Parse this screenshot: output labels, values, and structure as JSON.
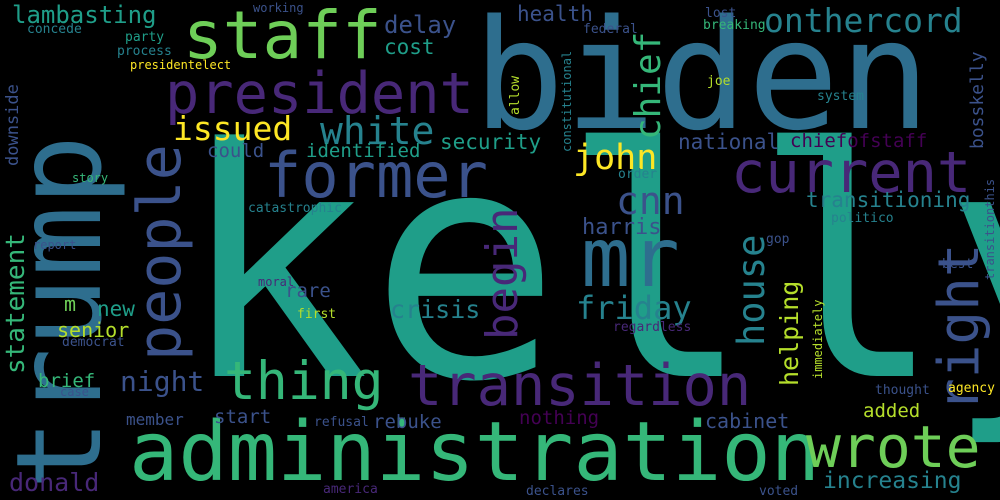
{
  "background": "#000000",
  "colors": {
    "blue": "#2e6e8e",
    "navy": "#3b528b",
    "purple": "#482878",
    "deep_purple": "#440154",
    "dark_teal": "#26828e",
    "teal": "#1f9e89",
    "green": "#35b779",
    "light_green": "#6ece58",
    "yellow": "#fde725",
    "lime": "#b5de2b"
  },
  "words": [
    {
      "text": "kelly",
      "color": "teal"
    },
    {
      "text": "biden",
      "color": "blue"
    },
    {
      "text": "trump",
      "color": "blue"
    },
    {
      "text": "administration",
      "color": "green"
    },
    {
      "text": "staff",
      "color": "light_green"
    },
    {
      "text": "president",
      "color": "purple"
    },
    {
      "text": "former",
      "color": "navy"
    },
    {
      "text": "mr",
      "color": "blue"
    },
    {
      "text": "transition",
      "color": "purple"
    },
    {
      "text": "current",
      "color": "purple"
    },
    {
      "text": "people",
      "color": "navy"
    },
    {
      "text": "right",
      "color": "navy"
    },
    {
      "text": "wrote",
      "color": "light_green"
    },
    {
      "text": "thing",
      "color": "green"
    },
    {
      "text": "onthercord",
      "color": "dark_teal"
    },
    {
      "text": "begin",
      "color": "purple"
    },
    {
      "text": "issued",
      "color": "yellow"
    },
    {
      "text": "white",
      "color": "dark_teal"
    },
    {
      "text": "john",
      "color": "yellow"
    },
    {
      "text": "chief",
      "color": "green"
    },
    {
      "text": "cnn",
      "color": "navy"
    },
    {
      "text": "house",
      "color": "dark_teal"
    },
    {
      "text": "friday",
      "color": "dark_teal"
    },
    {
      "text": "lambasting",
      "color": "teal"
    },
    {
      "text": "statement",
      "color": "green"
    },
    {
      "text": "night",
      "color": "navy"
    },
    {
      "text": "transitioning",
      "color": "dark_teal"
    },
    {
      "text": "chiefofstaff",
      "color": "deep_purple"
    },
    {
      "text": "national",
      "color": "navy"
    },
    {
      "text": "helping",
      "color": "lime"
    },
    {
      "text": "crisis",
      "color": "dark_teal"
    },
    {
      "text": "security",
      "color": "teal"
    },
    {
      "text": "harris",
      "color": "navy"
    },
    {
      "text": "delay",
      "color": "navy"
    },
    {
      "text": "donald",
      "color": "purple"
    },
    {
      "text": "increasing",
      "color": "dark_teal"
    },
    {
      "text": "new",
      "color": "teal"
    },
    {
      "text": "senior",
      "color": "lime"
    },
    {
      "text": "brief",
      "color": "green"
    },
    {
      "text": "cost",
      "color": "teal"
    },
    {
      "text": "health",
      "color": "navy"
    },
    {
      "text": "identified",
      "color": "teal"
    },
    {
      "text": "could",
      "color": "navy"
    },
    {
      "text": "rare",
      "color": "navy"
    },
    {
      "text": "start",
      "color": "navy"
    },
    {
      "text": "rebuke",
      "color": "navy"
    },
    {
      "text": "member",
      "color": "navy"
    },
    {
      "text": "nothing",
      "color": "deep_purple"
    },
    {
      "text": "added",
      "color": "lime"
    },
    {
      "text": "cabinet",
      "color": "navy"
    },
    {
      "text": "bosskelly",
      "color": "navy"
    },
    {
      "text": "downside",
      "color": "navy"
    },
    {
      "text": "m",
      "color": "light_green"
    },
    {
      "text": "concede",
      "color": "dark_teal"
    },
    {
      "text": "party",
      "color": "teal"
    },
    {
      "text": "process",
      "color": "dark_teal"
    },
    {
      "text": "presidentelect",
      "color": "yellow"
    },
    {
      "text": "working",
      "color": "navy"
    },
    {
      "text": "federal",
      "color": "navy"
    },
    {
      "text": "lost",
      "color": "navy"
    },
    {
      "text": "breaking",
      "color": "green"
    },
    {
      "text": "joe",
      "color": "lime"
    },
    {
      "text": "allow",
      "color": "lime"
    },
    {
      "text": "constitutional",
      "color": "dark_teal"
    },
    {
      "text": "system",
      "color": "dark_teal"
    },
    {
      "text": "story",
      "color": "green"
    },
    {
      "text": "order",
      "color": "dark_teal"
    },
    {
      "text": "catastrophic",
      "color": "dark_teal"
    },
    {
      "text": "politico",
      "color": "dark_teal"
    },
    {
      "text": "gop",
      "color": "navy"
    },
    {
      "text": "best",
      "color": "navy"
    },
    {
      "text": "transitionthis",
      "color": "navy"
    },
    {
      "text": "report",
      "color": "navy"
    },
    {
      "text": "moral",
      "color": "purple"
    },
    {
      "text": "first",
      "color": "lime"
    },
    {
      "text": "immediately",
      "color": "lime"
    },
    {
      "text": "regardless",
      "color": "purple"
    },
    {
      "text": "democrat",
      "color": "navy"
    },
    {
      "text": "case",
      "color": "navy"
    },
    {
      "text": "refusal",
      "color": "navy"
    },
    {
      "text": "thought",
      "color": "navy"
    },
    {
      "text": "agency",
      "color": "yellow"
    },
    {
      "text": "america",
      "color": "purple"
    },
    {
      "text": "declares",
      "color": "navy"
    },
    {
      "text": "voted",
      "color": "navy"
    }
  ]
}
